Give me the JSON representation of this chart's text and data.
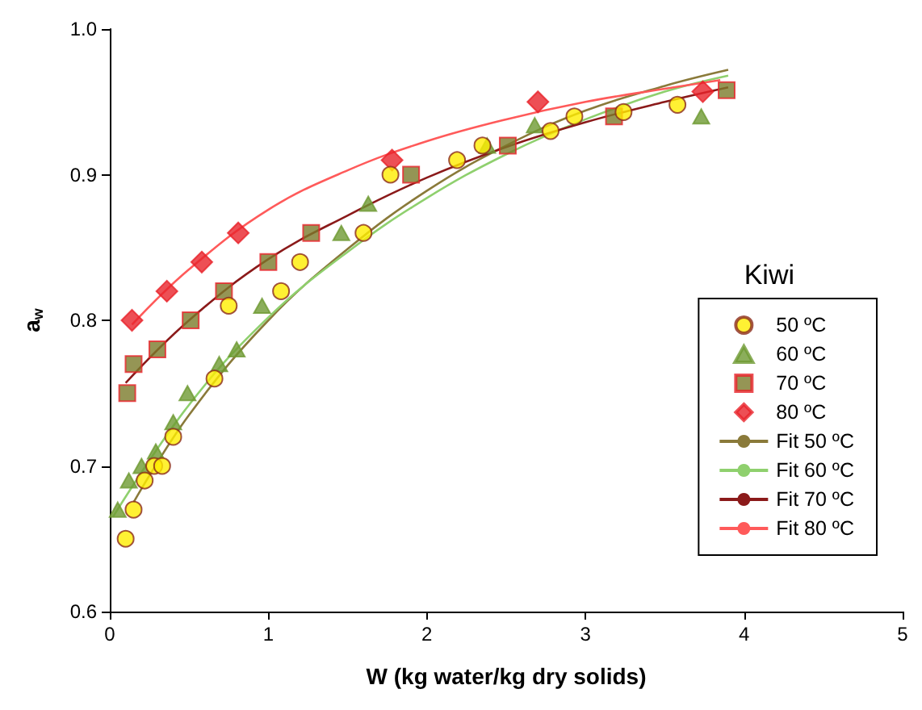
{
  "chart_data": {
    "type": "scatter",
    "xlabel": "W (kg water/kg dry solids)",
    "ylabel": "a$_{w}$",
    "legend_title": "Kiwi",
    "legend": "right",
    "grid": false,
    "xlim": [
      0,
      5
    ],
    "xticks": [
      0,
      1,
      2,
      3,
      4,
      5
    ],
    "ylim": [
      0.6,
      1.0
    ],
    "yticks": [
      0.6,
      0.7,
      0.8,
      0.9,
      {
        "value": 1.0,
        "label": "1.0"
      }
    ],
    "series": [
      {
        "name": "50 ºC",
        "marker": "circle",
        "color": "#ffee00",
        "x": [
          0.1,
          0.15,
          0.22,
          0.28,
          0.33,
          0.4,
          0.66,
          0.75,
          1.08,
          1.2,
          1.6,
          1.77,
          2.19,
          2.35,
          2.78,
          2.93,
          3.24,
          3.58
        ],
        "values": [
          0.65,
          0.67,
          0.69,
          0.7,
          0.7,
          0.72,
          0.76,
          0.81,
          0.82,
          0.84,
          0.86,
          0.9,
          0.91,
          0.92,
          0.93,
          0.94,
          0.943,
          0.948
        ]
      },
      {
        "name": "60 ºC",
        "marker": "triangle",
        "color": "#6e9a32",
        "x": [
          0.05,
          0.12,
          0.2,
          0.29,
          0.4,
          0.49,
          0.69,
          0.8,
          0.96,
          1.46,
          1.63,
          2.38,
          2.68,
          3.73
        ],
        "values": [
          0.67,
          0.69,
          0.7,
          0.71,
          0.73,
          0.75,
          0.77,
          0.78,
          0.81,
          0.86,
          0.88,
          0.92,
          0.934,
          0.94
        ]
      },
      {
        "name": "70 ºC",
        "marker": "square",
        "color": "#7a7a2a",
        "x": [
          0.11,
          0.15,
          0.3,
          0.51,
          0.72,
          1.0,
          1.27,
          1.9,
          2.51,
          3.18,
          3.89
        ],
        "values": [
          0.75,
          0.77,
          0.78,
          0.8,
          0.82,
          0.84,
          0.86,
          0.9,
          0.92,
          0.94,
          0.958
        ]
      },
      {
        "name": "80 ºC",
        "marker": "diamond",
        "color": "#e8232a",
        "x": [
          0.14,
          0.36,
          0.58,
          0.81,
          1.78,
          2.7,
          3.74
        ],
        "values": [
          0.8,
          0.82,
          0.84,
          0.86,
          0.91,
          0.95,
          0.957
        ]
      },
      {
        "name": "Fit 50 ºC",
        "type": "line",
        "marker": "none",
        "color": "#8a7a3a",
        "x": [
          0.15,
          0.5,
          1.0,
          1.5,
          2.0,
          2.5,
          3.0,
          3.5,
          3.9
        ],
        "values": [
          0.675,
          0.735,
          0.8,
          0.849,
          0.889,
          0.92,
          0.944,
          0.961,
          0.972
        ]
      },
      {
        "name": "Fit 60 ºC",
        "type": "line",
        "marker": "none",
        "color": "#8fd06e",
        "x": [
          0.02,
          0.5,
          1.0,
          1.5,
          2.0,
          2.5,
          3.0,
          3.5,
          3.9
        ],
        "values": [
          0.665,
          0.742,
          0.802,
          0.847,
          0.884,
          0.914,
          0.938,
          0.957,
          0.968
        ]
      },
      {
        "name": "Fit 70 ºC",
        "type": "line",
        "marker": "none",
        "color": "#8b1a1a",
        "x": [
          0.1,
          0.5,
          1.0,
          1.5,
          2.0,
          2.5,
          3.0,
          3.5,
          3.9
        ],
        "values": [
          0.757,
          0.8,
          0.842,
          0.872,
          0.898,
          0.919,
          0.936,
          0.95,
          0.96
        ]
      },
      {
        "name": "Fit 80 ºC",
        "type": "line",
        "marker": "none",
        "color": "#ff5a5a",
        "x": [
          0.14,
          0.5,
          1.0,
          1.5,
          2.0,
          2.5,
          3.0,
          3.5,
          3.85
        ],
        "values": [
          0.797,
          0.835,
          0.876,
          0.903,
          0.923,
          0.938,
          0.95,
          0.959,
          0.965
        ]
      }
    ]
  }
}
